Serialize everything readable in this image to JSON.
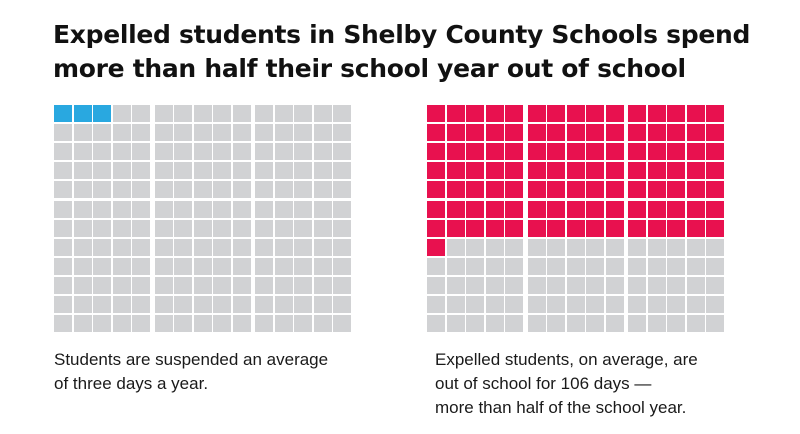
{
  "title": {
    "line1": "Expelled students in Shelby County Schools spend",
    "line2": "more than half their school year out of school"
  },
  "chart_data": [
    {
      "type": "waffle",
      "name": "suspended",
      "total": 180,
      "rows": 12,
      "columns": 15,
      "column_groups": 3,
      "filled": 3,
      "fill_color": "#29a8e0",
      "empty_color": "#d1d2d4",
      "caption": [
        "Students are suspended an average",
        "of three days a year."
      ]
    },
    {
      "type": "waffle",
      "name": "expelled",
      "total": 180,
      "rows": 12,
      "columns": 15,
      "column_groups": 3,
      "filled": 106,
      "fill_color": "#e8114f",
      "empty_color": "#d1d2d4",
      "caption": [
        "Expelled students, on average, are",
        "out of school for 106 days —",
        "more than half of the school year."
      ]
    }
  ]
}
